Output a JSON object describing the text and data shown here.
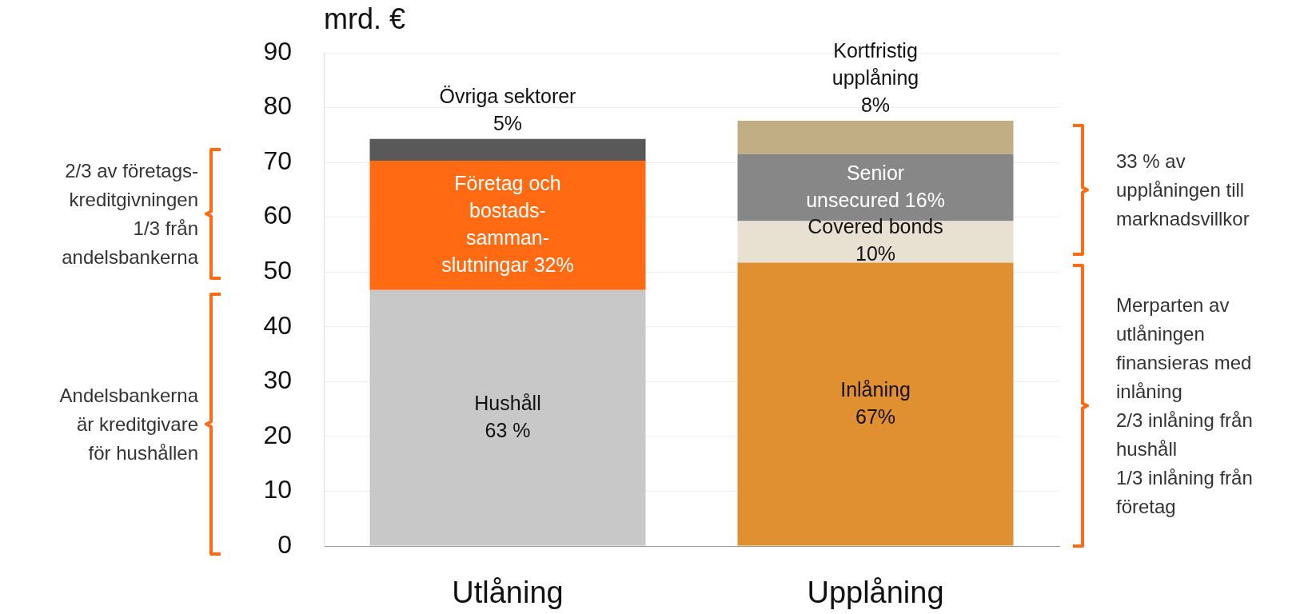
{
  "chart_data": {
    "type": "bar",
    "stacked": true,
    "ylabel": "mrd. €",
    "categories": [
      "Utlåning",
      "Upplåning"
    ],
    "series": [
      {
        "name": "Hushåll\n63 %",
        "color": "#c8c8c8",
        "values": [
          46.7,
          null
        ]
      },
      {
        "name": "Företag och\nbostads-\nsamman-\nslutningar 32%",
        "color": "#ff6a13",
        "values": [
          23.6,
          null
        ]
      },
      {
        "name": "Övriga sektorer\n5%",
        "color": "#595959",
        "values": [
          4.0,
          null
        ]
      },
      {
        "name": "Inlåning\n67%",
        "color": "#e09030",
        "values": [
          null,
          51.7
        ]
      },
      {
        "name": "Covered bonds\n10%",
        "color": "#e8e0d0",
        "values": [
          null,
          7.6
        ]
      },
      {
        "name": "Senior\nunsecured 16%",
        "color": "#878787",
        "values": [
          null,
          12.2
        ]
      },
      {
        "name": "Kortfristig\nupplåning\n8%",
        "color": "#c2ae85",
        "values": [
          null,
          6.1
        ]
      }
    ],
    "ylim": [
      0,
      90
    ],
    "yticks": [
      0,
      10,
      20,
      30,
      40,
      50,
      60,
      70,
      80,
      90
    ],
    "grid": "y",
    "legend": false,
    "annotations": [
      "2/3 av företags-\nkreditgivningen\n1/3 från\nandelsbankerna",
      "Andelsbankerna\när kreditgivare\nför hushållen",
      "33 % av\nupplåningen till\nmarknadsvillkor",
      "Merparten av\nutlåningen\nfinansieras med\ninlåning\n2/3 inlåning från\nhushåll\n1/3 inlåning från\nföretag"
    ]
  }
}
